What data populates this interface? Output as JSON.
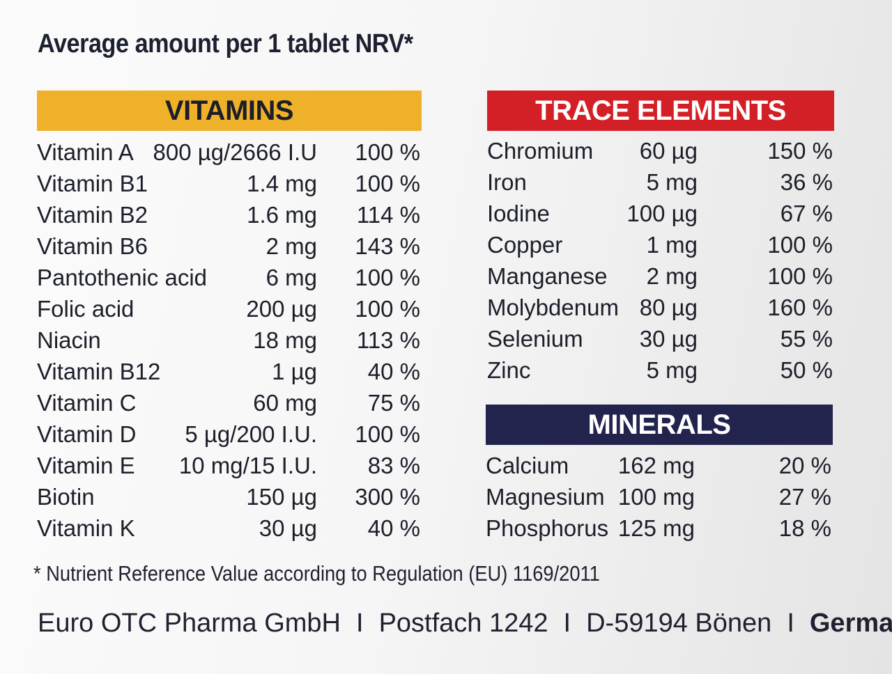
{
  "heading": "Average amount per 1 tablet NRV*",
  "vitamins": {
    "title": "VITAMINS",
    "rows": [
      {
        "name": "Vitamin A",
        "amount": "800 µg/2666 I.U",
        "nrv": "100 %"
      },
      {
        "name": "Vitamin B1",
        "amount": "1.4 mg",
        "nrv": "100 %"
      },
      {
        "name": "Vitamin B2",
        "amount": "1.6 mg",
        "nrv": "114 %"
      },
      {
        "name": "Vitamin B6",
        "amount": "2 mg",
        "nrv": "143 %"
      },
      {
        "name": "Pantothenic acid",
        "amount": "6 mg",
        "nrv": "100 %"
      },
      {
        "name": "Folic acid",
        "amount": "200 µg",
        "nrv": "100 %"
      },
      {
        "name": "Niacin",
        "amount": "18 mg",
        "nrv": "113 %"
      },
      {
        "name": "Vitamin B12",
        "amount": "1 µg",
        "nrv": "40 %"
      },
      {
        "name": "Vitamin C",
        "amount": "60 mg",
        "nrv": "75 %"
      },
      {
        "name": "Vitamin D",
        "amount": "5 µg/200 I.U.",
        "nrv": "100 %"
      },
      {
        "name": "Vitamin E",
        "amount": "10 mg/15 I.U.",
        "nrv": "83 %"
      },
      {
        "name": "Biotin",
        "amount": "150 µg",
        "nrv": "300 %"
      },
      {
        "name": "Vitamin K",
        "amount": "30 µg",
        "nrv": "40 %"
      }
    ]
  },
  "trace_elements": {
    "title": "TRACE ELEMENTS",
    "rows": [
      {
        "name": "Chromium",
        "amount": "60 µg",
        "nrv": "150 %"
      },
      {
        "name": "Iron",
        "amount": "5 mg",
        "nrv": "36 %"
      },
      {
        "name": "Iodine",
        "amount": "100 µg",
        "nrv": "67 %"
      },
      {
        "name": "Copper",
        "amount": "1 mg",
        "nrv": "100 %"
      },
      {
        "name": "Manganese",
        "amount": "2 mg",
        "nrv": "100 %"
      },
      {
        "name": "Molybdenum",
        "amount": "80 µg",
        "nrv": "160 %"
      },
      {
        "name": "Selenium",
        "amount": "30 µg",
        "nrv": "55 %"
      },
      {
        "name": "Zinc",
        "amount": "5 mg",
        "nrv": "50 %"
      }
    ]
  },
  "minerals": {
    "title": "MINERALS",
    "rows": [
      {
        "name": "Calcium",
        "amount": "162 mg",
        "nrv": "20 %"
      },
      {
        "name": "Magnesium",
        "amount": "100 mg",
        "nrv": "27 %"
      },
      {
        "name": "Phosphorus",
        "amount": "125 mg",
        "nrv": "18 %"
      }
    ]
  },
  "footnote": "* Nutrient Reference Value according to Regulation (EU) 1169/2011",
  "footer": {
    "company": "Euro OTC Pharma GmbH",
    "separator": "I",
    "po_box": "Postfach 1242",
    "city": "D-59194 Bönen",
    "country": "Germany"
  },
  "colors": {
    "vitamins_band": "#efb12a",
    "trace_band": "#d32027",
    "minerals_band": "#22244e"
  }
}
